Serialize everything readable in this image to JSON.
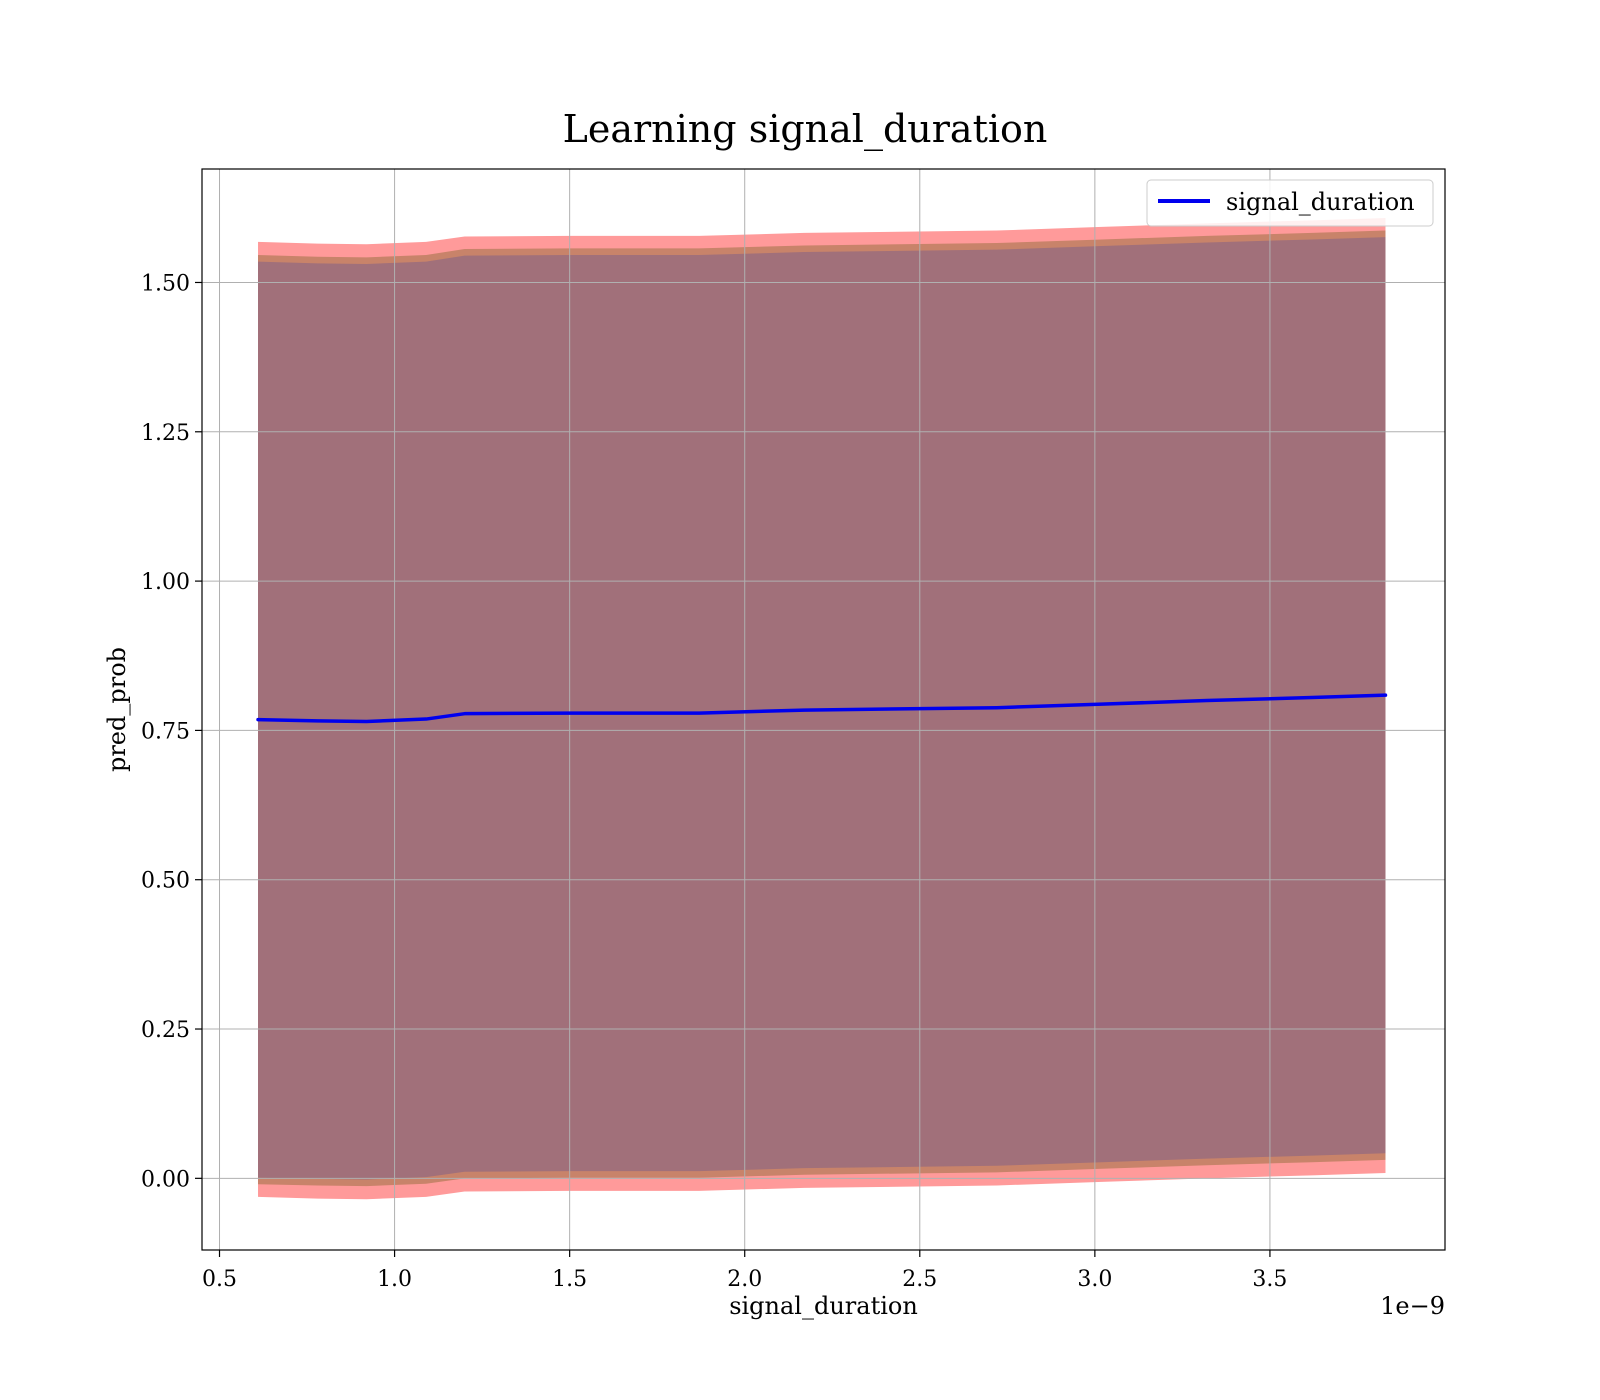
{
  "chart_data": {
    "type": "line",
    "title": "Learning signal_duration",
    "xlabel": "signal_duration",
    "ylabel": "pred_prob",
    "x_offset_label": "1e−9",
    "xlim": [
      0.45,
      4.0
    ],
    "ylim": [
      -0.12,
      1.69
    ],
    "xticks": [
      0.5,
      1.0,
      1.5,
      2.0,
      2.5,
      3.0,
      3.5
    ],
    "xtick_labels": [
      "0.5",
      "1.0",
      "1.5",
      "2.0",
      "2.5",
      "3.0",
      "3.5"
    ],
    "yticks": [
      0.0,
      0.25,
      0.5,
      0.75,
      1.0,
      1.25,
      1.5
    ],
    "ytick_labels": [
      "0.00",
      "0.25",
      "0.50",
      "0.75",
      "1.00",
      "1.25",
      "1.50"
    ],
    "grid": true,
    "legend_position": "top-right",
    "x": [
      0.61,
      0.78,
      0.92,
      1.09,
      1.2,
      1.5,
      1.87,
      2.17,
      2.72,
      3.02,
      3.32,
      3.62,
      3.83
    ],
    "series": [
      {
        "name": "signal_duration",
        "color": "#0000ee",
        "values": [
          0.768,
          0.766,
          0.765,
          0.769,
          0.778,
          0.779,
          0.779,
          0.784,
          0.788,
          0.794,
          0.8,
          0.805,
          0.809
        ]
      }
    ],
    "bands": [
      {
        "color": "#ff9a9a",
        "upper": [
          1.568,
          1.565,
          1.564,
          1.568,
          1.577,
          1.578,
          1.578,
          1.583,
          1.587,
          1.593,
          1.599,
          1.604,
          1.608
        ],
        "lower": [
          -0.031,
          -0.034,
          -0.035,
          -0.031,
          -0.022,
          -0.021,
          -0.021,
          -0.016,
          -0.012,
          -0.006,
          0.0,
          0.005,
          0.009
        ]
      },
      {
        "color": "#c8836a",
        "upper": [
          1.546,
          1.543,
          1.542,
          1.546,
          1.556,
          1.557,
          1.557,
          1.562,
          1.566,
          1.572,
          1.578,
          1.583,
          1.587
        ],
        "lower": [
          -0.01,
          -0.012,
          -0.013,
          -0.009,
          0.0,
          0.001,
          0.001,
          0.006,
          0.01,
          0.016,
          0.022,
          0.027,
          0.031
        ]
      },
      {
        "color": "#a1707a",
        "upper": [
          1.535,
          1.532,
          1.531,
          1.535,
          1.545,
          1.546,
          1.546,
          1.551,
          1.555,
          1.561,
          1.567,
          1.572,
          1.576
        ],
        "lower": [
          0.001,
          -0.001,
          -0.002,
          0.002,
          0.011,
          0.012,
          0.012,
          0.017,
          0.021,
          0.027,
          0.033,
          0.038,
          0.042
        ]
      }
    ]
  }
}
